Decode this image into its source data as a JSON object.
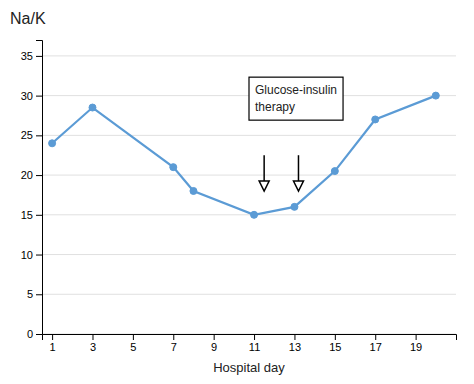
{
  "chart_data": {
    "type": "line",
    "title": "Na/K",
    "x_label": "Hospital day",
    "x": [
      1,
      3,
      7,
      8,
      11,
      13,
      15,
      17,
      20
    ],
    "values": [
      24,
      28.5,
      21,
      18,
      15,
      16,
      20.5,
      27,
      30
    ],
    "color": "#5B9BD5",
    "marker": "circle",
    "xlim": [
      0.5,
      21
    ],
    "xticks": [
      1,
      3,
      5,
      7,
      9,
      11,
      13,
      15,
      17,
      19
    ],
    "ylim": [
      0,
      37
    ],
    "yticks": [
      0,
      5,
      10,
      15,
      20,
      25,
      30,
      35
    ],
    "grid": true,
    "annotations": [
      {
        "text": "Glucose-insulin\ntherapy"
      }
    ],
    "arrows": [
      {
        "x": 11.5,
        "y_from": 22.5,
        "y_to": 18.0
      },
      {
        "x": 13.2,
        "y_from": 22.5,
        "y_to": 18.0
      }
    ]
  }
}
